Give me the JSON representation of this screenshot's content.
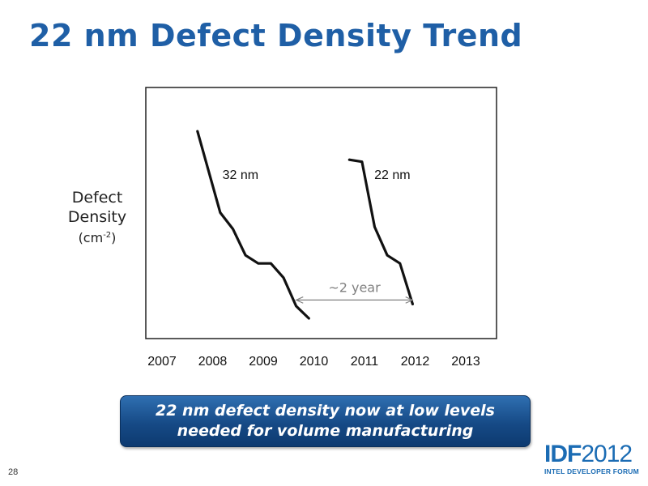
{
  "slide": {
    "title": "22 nm Defect Density Trend",
    "page_number": "28"
  },
  "y_axis_label": {
    "line1": "Defect",
    "line2": "Density",
    "unit_base": "(cm",
    "unit_exp": "-2",
    "unit_close": ")"
  },
  "callout": {
    "line1": "22 nm defect density now at low levels",
    "line2": "needed for volume manufacturing"
  },
  "logo": {
    "bold": "IDF",
    "light": "2012",
    "tagline": "INTEL DEVELOPER FORUM"
  },
  "colors": {
    "title": "#1f5fa6",
    "callout_bg": "#164a86",
    "logo": "#1b6cb4",
    "series_line": "#111111",
    "annotation": "#808080"
  },
  "chart_data": {
    "type": "line",
    "title": "",
    "xlabel": "",
    "ylabel": "Defect Density (cm-2)",
    "x_ticks": [
      "2007",
      "2008",
      "2009",
      "2010",
      "2011",
      "2012",
      "2013"
    ],
    "xlim": [
      2006.9,
      2013.5
    ],
    "ylim": [
      0,
      100
    ],
    "y_ticks_shown": false,
    "grid": false,
    "legend": "none",
    "series": [
      {
        "name": "32 nm",
        "x": [
          2007.7,
          2008.15,
          2008.4,
          2008.65,
          2008.9,
          2009.15,
          2009.4,
          2009.65,
          2009.9
        ],
        "y": [
          92,
          52,
          44,
          31,
          27,
          27,
          20,
          6,
          0
        ]
      },
      {
        "name": "22 nm",
        "x": [
          2010.7,
          2010.95,
          2011.2,
          2011.45,
          2011.7,
          2011.95
        ],
        "y": [
          78,
          77,
          45,
          31,
          27,
          7
        ]
      }
    ],
    "annotations": [
      {
        "text": "~2 year",
        "type": "double-arrow",
        "x_from": 2009.65,
        "x_to": 2011.95,
        "y": 9
      }
    ]
  }
}
